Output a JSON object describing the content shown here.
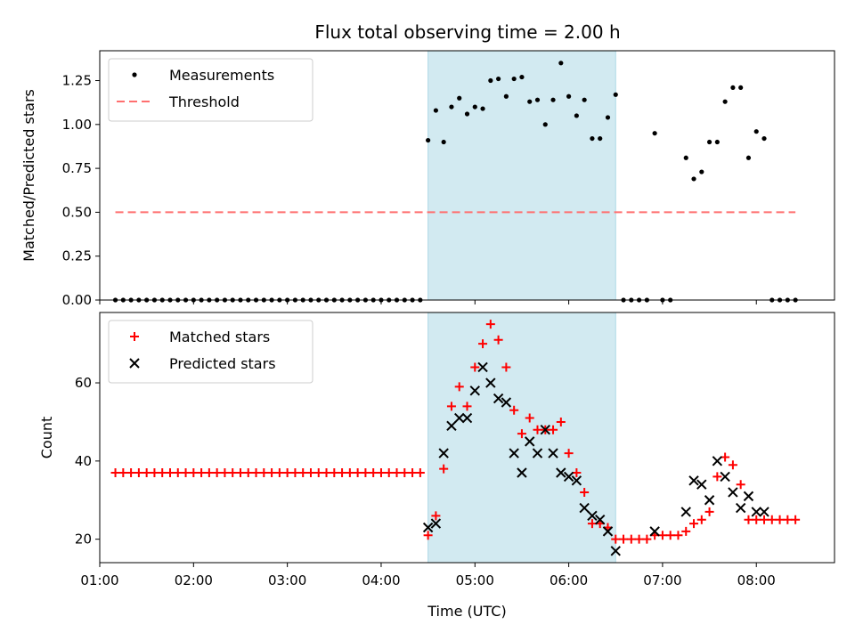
{
  "title": "Flux total observing time = 2.00 h",
  "chart_data": [
    {
      "type": "scatter",
      "ylabel": "Matched/Predicted stars",
      "xlabel": "",
      "xlim": [
        "01:00",
        "08:50"
      ],
      "ylim": [
        0,
        1.42
      ],
      "yticks": [
        "0.00",
        "0.25",
        "0.50",
        "0.75",
        "1.00",
        "1.25"
      ],
      "highlight_span": {
        "start": "04:30",
        "end": "06:30",
        "color": "#add8e6"
      },
      "legend_position": "upper-left",
      "threshold": {
        "name": "Threshold",
        "value": 0.5,
        "x_start": "01:10",
        "x_end": "08:25",
        "color": "#ff6f6f"
      },
      "series": [
        {
          "name": "Measurements",
          "marker": "dot",
          "color": "#000000",
          "points": [
            [
              "01:10",
              0
            ],
            [
              "01:15",
              0
            ],
            [
              "01:20",
              0
            ],
            [
              "01:25",
              0
            ],
            [
              "01:30",
              0
            ],
            [
              "01:35",
              0
            ],
            [
              "01:40",
              0
            ],
            [
              "01:45",
              0
            ],
            [
              "01:50",
              0
            ],
            [
              "01:55",
              0
            ],
            [
              "02:00",
              0
            ],
            [
              "02:05",
              0
            ],
            [
              "02:10",
              0
            ],
            [
              "02:15",
              0
            ],
            [
              "02:20",
              0
            ],
            [
              "02:25",
              0
            ],
            [
              "02:30",
              0
            ],
            [
              "02:35",
              0
            ],
            [
              "02:40",
              0
            ],
            [
              "02:45",
              0
            ],
            [
              "02:50",
              0
            ],
            [
              "02:55",
              0
            ],
            [
              "03:00",
              0
            ],
            [
              "03:05",
              0
            ],
            [
              "03:10",
              0
            ],
            [
              "03:15",
              0
            ],
            [
              "03:20",
              0
            ],
            [
              "03:25",
              0
            ],
            [
              "03:30",
              0
            ],
            [
              "03:35",
              0
            ],
            [
              "03:40",
              0
            ],
            [
              "03:45",
              0
            ],
            [
              "03:50",
              0
            ],
            [
              "03:55",
              0
            ],
            [
              "04:00",
              0
            ],
            [
              "04:05",
              0
            ],
            [
              "04:10",
              0
            ],
            [
              "04:15",
              0
            ],
            [
              "04:20",
              0
            ],
            [
              "04:25",
              0
            ],
            [
              "04:30",
              0.91
            ],
            [
              "04:35",
              1.08
            ],
            [
              "04:40",
              0.9
            ],
            [
              "04:45",
              1.1
            ],
            [
              "04:50",
              1.15
            ],
            [
              "04:55",
              1.06
            ],
            [
              "05:00",
              1.1
            ],
            [
              "05:05",
              1.09
            ],
            [
              "05:10",
              1.25
            ],
            [
              "05:15",
              1.26
            ],
            [
              "05:20",
              1.16
            ],
            [
              "05:25",
              1.26
            ],
            [
              "05:30",
              1.27
            ],
            [
              "05:35",
              1.13
            ],
            [
              "05:40",
              1.14
            ],
            [
              "05:45",
              1.0
            ],
            [
              "05:50",
              1.14
            ],
            [
              "05:55",
              1.35
            ],
            [
              "06:00",
              1.16
            ],
            [
              "06:05",
              1.05
            ],
            [
              "06:10",
              1.14
            ],
            [
              "06:15",
              0.92
            ],
            [
              "06:20",
              0.92
            ],
            [
              "06:25",
              1.04
            ],
            [
              "06:30",
              1.17
            ],
            [
              "06:35",
              0
            ],
            [
              "06:40",
              0
            ],
            [
              "06:45",
              0
            ],
            [
              "06:50",
              0
            ],
            [
              "06:55",
              0.95
            ],
            [
              "07:00",
              0
            ],
            [
              "07:05",
              0
            ],
            [
              "07:15",
              0.81
            ],
            [
              "07:20",
              0.69
            ],
            [
              "07:25",
              0.73
            ],
            [
              "07:30",
              0.9
            ],
            [
              "07:35",
              0.9
            ],
            [
              "07:40",
              1.13
            ],
            [
              "07:45",
              1.21
            ],
            [
              "07:50",
              1.21
            ],
            [
              "07:55",
              0.81
            ],
            [
              "08:00",
              0.96
            ],
            [
              "08:05",
              0.92
            ],
            [
              "08:10",
              0
            ],
            [
              "08:15",
              0
            ],
            [
              "08:20",
              0
            ],
            [
              "08:25",
              0
            ]
          ]
        }
      ]
    },
    {
      "type": "scatter",
      "ylabel": "Count",
      "xlabel": "Time (UTC)",
      "xlim": [
        "01:00",
        "08:50"
      ],
      "ylim": [
        14,
        78
      ],
      "yticks": [
        "20",
        "40",
        "60"
      ],
      "xticks": [
        "01:00",
        "02:00",
        "03:00",
        "04:00",
        "05:00",
        "06:00",
        "07:00",
        "08:00"
      ],
      "highlight_span": {
        "start": "04:30",
        "end": "06:30",
        "color": "#add8e6"
      },
      "legend_position": "upper-left",
      "series": [
        {
          "name": "Matched stars",
          "marker": "plus",
          "color": "#ff0000",
          "points": [
            [
              "01:10",
              37
            ],
            [
              "01:15",
              37
            ],
            [
              "01:20",
              37
            ],
            [
              "01:25",
              37
            ],
            [
              "01:30",
              37
            ],
            [
              "01:35",
              37
            ],
            [
              "01:40",
              37
            ],
            [
              "01:45",
              37
            ],
            [
              "01:50",
              37
            ],
            [
              "01:55",
              37
            ],
            [
              "02:00",
              37
            ],
            [
              "02:05",
              37
            ],
            [
              "02:10",
              37
            ],
            [
              "02:15",
              37
            ],
            [
              "02:20",
              37
            ],
            [
              "02:25",
              37
            ],
            [
              "02:30",
              37
            ],
            [
              "02:35",
              37
            ],
            [
              "02:40",
              37
            ],
            [
              "02:45",
              37
            ],
            [
              "02:50",
              37
            ],
            [
              "02:55",
              37
            ],
            [
              "03:00",
              37
            ],
            [
              "03:05",
              37
            ],
            [
              "03:10",
              37
            ],
            [
              "03:15",
              37
            ],
            [
              "03:20",
              37
            ],
            [
              "03:25",
              37
            ],
            [
              "03:30",
              37
            ],
            [
              "03:35",
              37
            ],
            [
              "03:40",
              37
            ],
            [
              "03:45",
              37
            ],
            [
              "03:50",
              37
            ],
            [
              "03:55",
              37
            ],
            [
              "04:00",
              37
            ],
            [
              "04:05",
              37
            ],
            [
              "04:10",
              37
            ],
            [
              "04:15",
              37
            ],
            [
              "04:20",
              37
            ],
            [
              "04:25",
              37
            ],
            [
              "04:30",
              21
            ],
            [
              "04:35",
              26
            ],
            [
              "04:40",
              38
            ],
            [
              "04:45",
              54
            ],
            [
              "04:50",
              59
            ],
            [
              "04:55",
              54
            ],
            [
              "05:00",
              64
            ],
            [
              "05:05",
              70
            ],
            [
              "05:10",
              75
            ],
            [
              "05:15",
              71
            ],
            [
              "05:20",
              64
            ],
            [
              "05:25",
              53
            ],
            [
              "05:30",
              47
            ],
            [
              "05:35",
              51
            ],
            [
              "05:40",
              48
            ],
            [
              "05:45",
              48
            ],
            [
              "05:50",
              48
            ],
            [
              "05:55",
              50
            ],
            [
              "06:00",
              42
            ],
            [
              "06:05",
              37
            ],
            [
              "06:10",
              32
            ],
            [
              "06:15",
              24
            ],
            [
              "06:20",
              24
            ],
            [
              "06:25",
              23
            ],
            [
              "06:30",
              20
            ],
            [
              "06:35",
              20
            ],
            [
              "06:40",
              20
            ],
            [
              "06:45",
              20
            ],
            [
              "06:50",
              20
            ],
            [
              "06:55",
              21
            ],
            [
              "07:00",
              21
            ],
            [
              "07:05",
              21
            ],
            [
              "07:10",
              21
            ],
            [
              "07:15",
              22
            ],
            [
              "07:20",
              24
            ],
            [
              "07:25",
              25
            ],
            [
              "07:30",
              27
            ],
            [
              "07:35",
              36
            ],
            [
              "07:40",
              41
            ],
            [
              "07:45",
              39
            ],
            [
              "07:50",
              34
            ],
            [
              "07:55",
              25
            ],
            [
              "08:00",
              25
            ],
            [
              "08:05",
              25
            ],
            [
              "08:10",
              25
            ],
            [
              "08:15",
              25
            ],
            [
              "08:20",
              25
            ],
            [
              "08:25",
              25
            ]
          ]
        },
        {
          "name": "Predicted stars",
          "marker": "x",
          "color": "#000000",
          "points": [
            [
              "04:30",
              23
            ],
            [
              "04:35",
              24
            ],
            [
              "04:40",
              42
            ],
            [
              "04:45",
              49
            ],
            [
              "04:50",
              51
            ],
            [
              "04:55",
              51
            ],
            [
              "05:00",
              58
            ],
            [
              "05:05",
              64
            ],
            [
              "05:10",
              60
            ],
            [
              "05:15",
              56
            ],
            [
              "05:20",
              55
            ],
            [
              "05:25",
              42
            ],
            [
              "05:30",
              37
            ],
            [
              "05:35",
              45
            ],
            [
              "05:40",
              42
            ],
            [
              "05:45",
              48
            ],
            [
              "05:50",
              42
            ],
            [
              "05:55",
              37
            ],
            [
              "06:00",
              36
            ],
            [
              "06:05",
              35
            ],
            [
              "06:10",
              28
            ],
            [
              "06:15",
              26
            ],
            [
              "06:20",
              25
            ],
            [
              "06:25",
              22
            ],
            [
              "06:30",
              17
            ],
            [
              "06:55",
              22
            ],
            [
              "07:15",
              27
            ],
            [
              "07:20",
              35
            ],
            [
              "07:25",
              34
            ],
            [
              "07:30",
              30
            ],
            [
              "07:35",
              40
            ],
            [
              "07:40",
              36
            ],
            [
              "07:45",
              32
            ],
            [
              "07:50",
              28
            ],
            [
              "07:55",
              31
            ],
            [
              "08:00",
              27
            ],
            [
              "08:05",
              27
            ]
          ]
        }
      ]
    }
  ]
}
